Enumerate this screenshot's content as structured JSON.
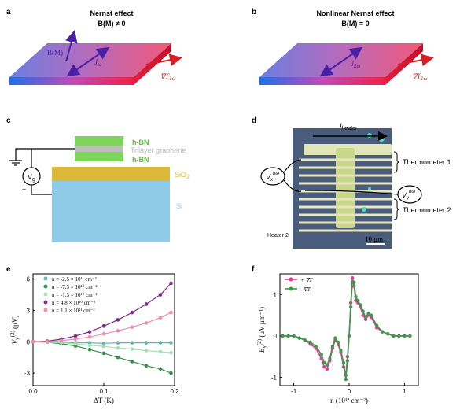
{
  "panel_a": {
    "label": "a",
    "title_line1": "Nernst effect",
    "title_line2": "B(M) ≠ 0",
    "b_label": "B(M)",
    "j_label": "J",
    "j_sub": "ω",
    "grad_label": "∇T",
    "grad_sub": "1ω"
  },
  "panel_b": {
    "label": "b",
    "title_line1": "Nonlinear Nernst effect",
    "title_line2": "B(M) = 0",
    "j_label": "J",
    "j_sub": "2ω",
    "grad_label": "∇T",
    "grad_sub": "1ω"
  },
  "panel_c": {
    "label": "c",
    "layers": [
      "h-BN",
      "Trilayer graphene",
      "h-BN",
      "SiO",
      "Si"
    ],
    "sio_sub": "2",
    "vg": "V",
    "vg_sub": "g",
    "minus": "-",
    "plus": "+",
    "colors": {
      "hbn": "#7dd65a",
      "graphene": "#bdbdbd",
      "sio2": "#d9b83a",
      "si": "#8fcbe9"
    }
  },
  "panel_d": {
    "label": "d",
    "heater_label": "I",
    "heater_sub": "heater",
    "thermometer1": "Thermometer 1",
    "thermometer2": "Thermometer 2",
    "vx": "V",
    "vx_sub": "x",
    "vx_sup": "nω",
    "vy": "V",
    "vy_sub": "y",
    "vy_sup": "nω",
    "heater2": "Heater 2",
    "scale": "10 μm"
  },
  "chart_data": [
    {
      "panel": "e",
      "type": "scatter",
      "ylabel": "V",
      "ylabel_sub": "y",
      "ylabel_sup": "(2)",
      "ylabel_unit": "(μV)",
      "xlabel": "ΔT (K)",
      "xlim": [
        0,
        0.2
      ],
      "ylim": [
        -4.2,
        6.5
      ],
      "xticks": [
        "0.0",
        "0.1",
        "0.2"
      ],
      "yticks": [
        "-3",
        "0",
        "3",
        "6"
      ],
      "x": [
        0.0,
        0.02,
        0.04,
        0.06,
        0.08,
        0.1,
        0.12,
        0.14,
        0.16,
        0.18,
        0.195
      ],
      "series": [
        {
          "name": "n = -2.5 × 10¹¹ cm⁻²",
          "color": "#5fb8a8",
          "values": [
            0.0,
            0.0,
            -0.05,
            -0.1,
            -0.1,
            -0.15,
            -0.1,
            -0.1,
            -0.1,
            -0.1,
            -0.1
          ]
        },
        {
          "name": "n = -7.3 × 10¹⁰ cm⁻²",
          "color": "#3a8f4c",
          "values": [
            0.0,
            -0.05,
            -0.2,
            -0.4,
            -0.75,
            -1.1,
            -1.5,
            -1.9,
            -2.3,
            -2.6,
            -3.0
          ]
        },
        {
          "name": "n = -1.3 × 10¹⁰ cm⁻²",
          "color": "#a8dfb0",
          "values": [
            0.0,
            -0.05,
            -0.1,
            -0.2,
            -0.35,
            -0.45,
            -0.6,
            -0.7,
            -0.85,
            -0.95,
            -1.05
          ]
        },
        {
          "name": "n = 4.8 × 10¹⁰ cm⁻²",
          "color": "#7a2a8a",
          "values": [
            0.0,
            0.05,
            0.25,
            0.55,
            0.95,
            1.5,
            2.1,
            2.8,
            3.6,
            4.5,
            5.6
          ]
        },
        {
          "name": "n = 1.1 × 10¹¹ cm⁻²",
          "color": "#f08ab0",
          "values": [
            0.0,
            0.0,
            0.1,
            0.25,
            0.45,
            0.75,
            1.05,
            1.4,
            1.8,
            2.3,
            2.8
          ]
        }
      ]
    },
    {
      "panel": "f",
      "type": "line",
      "ylabel": "E",
      "ylabel_sub": "y",
      "ylabel_sup": "(2)",
      "ylabel_unit": "(μV μm⁻¹)",
      "xlabel": "n (10¹² cm⁻²)",
      "xlim": [
        -1.25,
        1.25
      ],
      "ylim": [
        -1.2,
        1.5
      ],
      "xticks": [
        "-1",
        "0",
        "1"
      ],
      "yticks": [
        "-1",
        "0",
        "1"
      ],
      "series": [
        {
          "name": "+ ∇T",
          "color": "#e8379a",
          "x": [
            -1.2,
            -1.1,
            -1.0,
            -0.9,
            -0.8,
            -0.7,
            -0.6,
            -0.5,
            -0.45,
            -0.4,
            -0.35,
            -0.3,
            -0.25,
            -0.2,
            -0.15,
            -0.1,
            -0.06,
            -0.03,
            0.0,
            0.03,
            0.06,
            0.09,
            0.12,
            0.16,
            0.2,
            0.25,
            0.3,
            0.35,
            0.4,
            0.5,
            0.6,
            0.7,
            0.8,
            0.9,
            1.0,
            1.1
          ],
          "values": [
            0.0,
            0.0,
            0.0,
            -0.05,
            -0.1,
            -0.2,
            -0.3,
            -0.55,
            -0.75,
            -0.8,
            -0.6,
            -0.3,
            -0.1,
            -0.2,
            -0.4,
            -0.75,
            -0.95,
            -0.5,
            0.0,
            0.8,
            1.4,
            1.2,
            0.85,
            0.8,
            0.7,
            0.5,
            0.4,
            0.5,
            0.45,
            0.2,
            0.1,
            0.05,
            0.0,
            0.0,
            0.0,
            0.0
          ]
        },
        {
          "name": "- ∇T",
          "color": "#3a9a48",
          "x": [
            -1.2,
            -1.1,
            -1.0,
            -0.9,
            -0.8,
            -0.7,
            -0.6,
            -0.5,
            -0.45,
            -0.4,
            -0.35,
            -0.3,
            -0.25,
            -0.2,
            -0.15,
            -0.1,
            -0.06,
            -0.03,
            0.0,
            0.03,
            0.06,
            0.09,
            0.12,
            0.16,
            0.2,
            0.25,
            0.3,
            0.35,
            0.4,
            0.5,
            0.6,
            0.7,
            0.8,
            0.9,
            1.0,
            1.1
          ],
          "values": [
            0.0,
            0.0,
            0.0,
            -0.05,
            -0.1,
            -0.15,
            -0.25,
            -0.45,
            -0.65,
            -0.7,
            -0.55,
            -0.25,
            -0.05,
            -0.15,
            -0.35,
            -0.65,
            -1.05,
            -0.6,
            0.0,
            0.7,
            1.3,
            1.3,
            0.95,
            0.85,
            0.75,
            0.6,
            0.45,
            0.55,
            0.5,
            0.25,
            0.1,
            0.05,
            0.0,
            0.0,
            0.0,
            0.0
          ]
        }
      ]
    }
  ]
}
